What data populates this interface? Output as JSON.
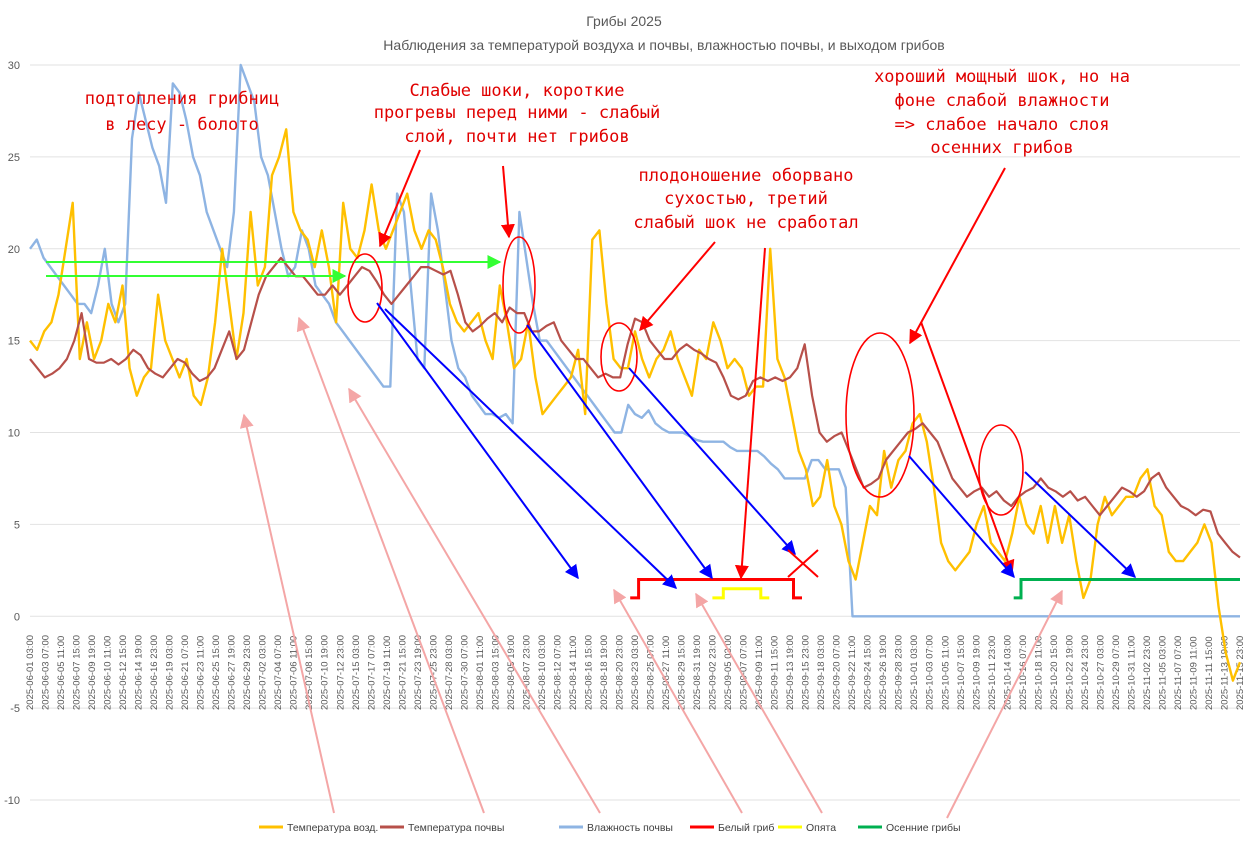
{
  "chart_data": {
    "type": "line",
    "title": "Грибы 2025",
    "subtitle": "Наблюдения за температурой воздуха и почвы, влажностью почвы, и выходом грибов",
    "ylim": [
      -10,
      30
    ],
    "yticks": [
      30,
      25,
      20,
      15,
      10,
      5,
      0,
      -5,
      -10
    ],
    "grid": true,
    "legend_position": "bottom",
    "x_labels": [
      "2025-06-01 03:00",
      "2025-06-03 07:00",
      "2025-06-05 11:00",
      "2025-06-07 15:00",
      "2025-06-09 19:00",
      "2025-06-10 11:00",
      "2025-06-12 15:00",
      "2025-06-14 19:00",
      "2025-06-16 23:00",
      "2025-06-19 03:00",
      "2025-06-21 07:00",
      "2025-06-23 11:00",
      "2025-06-25 15:00",
      "2025-06-27 19:00",
      "2025-06-29 23:00",
      "2025-07-02 03:00",
      "2025-07-04 07:00",
      "2025-07-06 11:00",
      "2025-07-08 15:00",
      "2025-07-10 19:00",
      "2025-07-12 23:00",
      "2025-07-15 03:00",
      "2025-07-17 07:00",
      "2025-07-19 11:00",
      "2025-07-21 15:00",
      "2025-07-23 19:00",
      "2025-07-25 23:00",
      "2025-07-28 03:00",
      "2025-07-30 07:00",
      "2025-08-01 11:00",
      "2025-08-03 15:00",
      "2025-08-05 19:00",
      "2025-08-07 23:00",
      "2025-08-10 03:00",
      "2025-08-12 07:00",
      "2025-08-14 11:00",
      "2025-08-16 15:00",
      "2025-08-18 19:00",
      "2025-08-20 23:00",
      "2025-08-23 03:00",
      "2025-08-25 07:00",
      "2025-08-27 11:00",
      "2025-08-29 15:00",
      "2025-08-31 19:00",
      "2025-09-02 23:00",
      "2025-09-05 03:00",
      "2025-09-07 07:00",
      "2025-09-09 11:00",
      "2025-09-11 15:00",
      "2025-09-13 19:00",
      "2025-09-15 23:00",
      "2025-09-18 03:00",
      "2025-09-20 07:00",
      "2025-09-22 11:00",
      "2025-09-24 15:00",
      "2025-09-26 19:00",
      "2025-09-28 23:00",
      "2025-10-01 03:00",
      "2025-10-03 07:00",
      "2025-10-05 11:00",
      "2025-10-07 15:00",
      "2025-10-09 19:00",
      "2025-10-11 23:00",
      "2025-10-14 03:00",
      "2025-10-16 07:00",
      "2025-10-18 11:00",
      "2025-10-20 15:00",
      "2025-10-22 19:00",
      "2025-10-24 23:00",
      "2025-10-27 03:00",
      "2025-10-29 07:00",
      "2025-10-31 11:00",
      "2025-11-02 23:00",
      "2025-11-05 03:00",
      "2025-11-07 07:00",
      "2025-11-09 11:00",
      "2025-11-11 15:00",
      "2025-11-13 19:00",
      "2025-11-15 23:00"
    ],
    "series": [
      {
        "name": "Температура возд.",
        "color": "#ffc000",
        "values": [
          15,
          14.5,
          15.5,
          16,
          17.5,
          20,
          22.5,
          14,
          16,
          14,
          15,
          17,
          16,
          18,
          13.5,
          12,
          13,
          13.5,
          17.5,
          15,
          14,
          13,
          14,
          12,
          11.5,
          13,
          16,
          20,
          17,
          14,
          16.5,
          22,
          18,
          19,
          24,
          25,
          26.5,
          22,
          21,
          20.5,
          19,
          21,
          19,
          16,
          22.5,
          20,
          19.5,
          21,
          23.5,
          21,
          20,
          21,
          22,
          23,
          21,
          20,
          21,
          20.5,
          19,
          17,
          16,
          15.5,
          16,
          16.5,
          15,
          14,
          18,
          16,
          13.5,
          14,
          16,
          13,
          11,
          11.5,
          12,
          12.5,
          13,
          14.5,
          11,
          20.5,
          21,
          17,
          14,
          13.5,
          13.5,
          15.5,
          14,
          13,
          14,
          14.5,
          15.5,
          14,
          13,
          12,
          14.5,
          14,
          16,
          15,
          13.5,
          14,
          13.5,
          12,
          12.5,
          12.5,
          20,
          14,
          13,
          11,
          9,
          8,
          6,
          6.5,
          8.5,
          6,
          5,
          3,
          2,
          4,
          6,
          5.5,
          9,
          7,
          8.5,
          9,
          10.5,
          11,
          9.5,
          7,
          4,
          3,
          2.5,
          3,
          3.5,
          5,
          6,
          4,
          3.5,
          3,
          4.5,
          6.5,
          5,
          4.5,
          6,
          4,
          6,
          4,
          5.5,
          3,
          1,
          2,
          5,
          6.5,
          5.5,
          6,
          6.5,
          6.5,
          7.5,
          8,
          6,
          5.5,
          3.5,
          3,
          3,
          3.5,
          4,
          5,
          4,
          0.5,
          -2,
          -3.5,
          -2.5
        ]
      },
      {
        "name": "Температура почвы",
        "color": "#b7504a",
        "values": [
          14,
          13.5,
          13,
          13.2,
          13.5,
          14,
          15,
          16.5,
          14,
          13.8,
          13.8,
          14,
          13.7,
          14,
          14.5,
          14.2,
          13.5,
          13.2,
          13,
          13.5,
          14,
          13.8,
          13.2,
          12.8,
          13,
          13.5,
          14.5,
          15.5,
          14,
          14.5,
          16,
          17.5,
          18.5,
          19,
          19.5,
          19,
          18.5,
          18.5,
          18,
          17.5,
          17.5,
          18,
          17.5,
          18,
          18.5,
          19,
          18.8,
          18.2,
          17.5,
          17,
          17.5,
          18,
          18.5,
          19,
          19,
          18.8,
          18.6,
          18.8,
          17.5,
          16,
          15.5,
          15.8,
          16.2,
          16.5,
          16,
          16.8,
          16.5,
          16.5,
          15.5,
          15.5,
          15.8,
          16,
          15,
          14.5,
          14,
          14,
          13.5,
          13,
          13.2,
          13,
          13,
          14.8,
          16.2,
          16,
          15,
          14.5,
          14,
          14,
          14.5,
          14.8,
          14.5,
          14.3,
          14,
          13.8,
          13,
          12,
          11.8,
          12,
          12.8,
          13,
          12.8,
          13,
          12.8,
          13,
          13.5,
          14.8,
          12,
          10,
          9.5,
          9.8,
          10,
          9,
          8,
          7,
          7.2,
          7.5,
          8.5,
          9,
          9.5,
          10,
          10.2,
          10.5,
          10,
          9.5,
          8.5,
          7.5,
          7,
          6.5,
          6.8,
          7,
          6.5,
          6.8,
          6.3,
          6,
          6.5,
          6.8,
          7,
          7.5,
          7,
          6.8,
          6.5,
          6.8,
          6.3,
          6.5,
          6,
          5.5,
          6,
          6.5,
          7,
          6.8,
          6.5,
          6.8,
          7.5,
          7.8,
          7,
          6.5,
          6,
          5.8,
          5.5,
          5.8,
          5.7,
          4.5,
          4,
          3.5,
          3.2
        ]
      },
      {
        "name": "Влажность почвы",
        "color": "#8eb4e3",
        "values": [
          20,
          20.5,
          19.5,
          19,
          18.5,
          18,
          17.5,
          17,
          17,
          16.5,
          18,
          20,
          17,
          16,
          17,
          26,
          28.5,
          27,
          25.5,
          24.5,
          22.5,
          29,
          28.5,
          27,
          25,
          24,
          22,
          21,
          20,
          19,
          22,
          30,
          29,
          28,
          25,
          24,
          22,
          20,
          18.5,
          19,
          21,
          20,
          18,
          17.5,
          17,
          16,
          15.5,
          15,
          14.5,
          14,
          13.5,
          13,
          12.5,
          12.5,
          23,
          22,
          18,
          14,
          13.5,
          23,
          21,
          18,
          15,
          13.5,
          13,
          12,
          11.5,
          11,
          11,
          10.8,
          11,
          10.5,
          22,
          19.5,
          17,
          15,
          15,
          14.5,
          14,
          13.5,
          13,
          12.5,
          12,
          11.5,
          11,
          10.5,
          10,
          10,
          11.5,
          11,
          10.8,
          11.2,
          10.5,
          10.2,
          10,
          10,
          10,
          9.8,
          9.6,
          9.5,
          9.5,
          9.5,
          9.5,
          9.2,
          9,
          9,
          9,
          9,
          8.7,
          8.3,
          8,
          7.5,
          7.5,
          7.5,
          7.5,
          8.5,
          8.5,
          8,
          8,
          8,
          7,
          0,
          0,
          0,
          0,
          0,
          0,
          0,
          0,
          0,
          0,
          0,
          0,
          0,
          0,
          0,
          0,
          0,
          0,
          0,
          0,
          0,
          0,
          0,
          0,
          0,
          0,
          0,
          0,
          0,
          0,
          0,
          0,
          0,
          0,
          0,
          0,
          0,
          0,
          0,
          0,
          0,
          0,
          0,
          0,
          0,
          0,
          0,
          0,
          0,
          0,
          0,
          0,
          0,
          0,
          0,
          0,
          0,
          0
        ]
      },
      {
        "name": "Белый гриб",
        "color": "#ff0000",
        "segments": [
          {
            "x": [
              0.496,
              0.503,
              0.503,
              0.631,
              0.631,
              0.638
            ],
            "y": [
              1,
              1,
              2,
              2,
              1,
              1
            ]
          }
        ]
      },
      {
        "name": "Опята",
        "color": "#ffff00",
        "segments": [
          {
            "x": [
              0.564,
              0.573,
              0.573,
              0.604,
              0.604,
              0.611
            ],
            "y": [
              1,
              1,
              1.5,
              1.5,
              1,
              1
            ]
          }
        ]
      },
      {
        "name": "Осенние грибы",
        "color": "#00b050",
        "segments": [
          {
            "x": [
              0.813,
              0.819,
              0.819,
              1.0
            ],
            "y": [
              1,
              1,
              2,
              2
            ]
          }
        ]
      }
    ],
    "annotations": [
      {
        "lines": [
          "подтопления грибниц",
          "в лесу - болото"
        ]
      },
      {
        "lines": [
          "Слабые шоки, короткие",
          "прогревы перед ними - слабый",
          "слой, почти нет грибов"
        ]
      },
      {
        "lines": [
          "плодоношение оборвано",
          "сухостью, третий",
          "слабый шок не сработал"
        ]
      },
      {
        "lines": [
          "хороший мощный шок, но на",
          "фоне слабой влажности",
          "=> слабое начало слоя",
          "осенних грибов"
        ]
      }
    ]
  }
}
